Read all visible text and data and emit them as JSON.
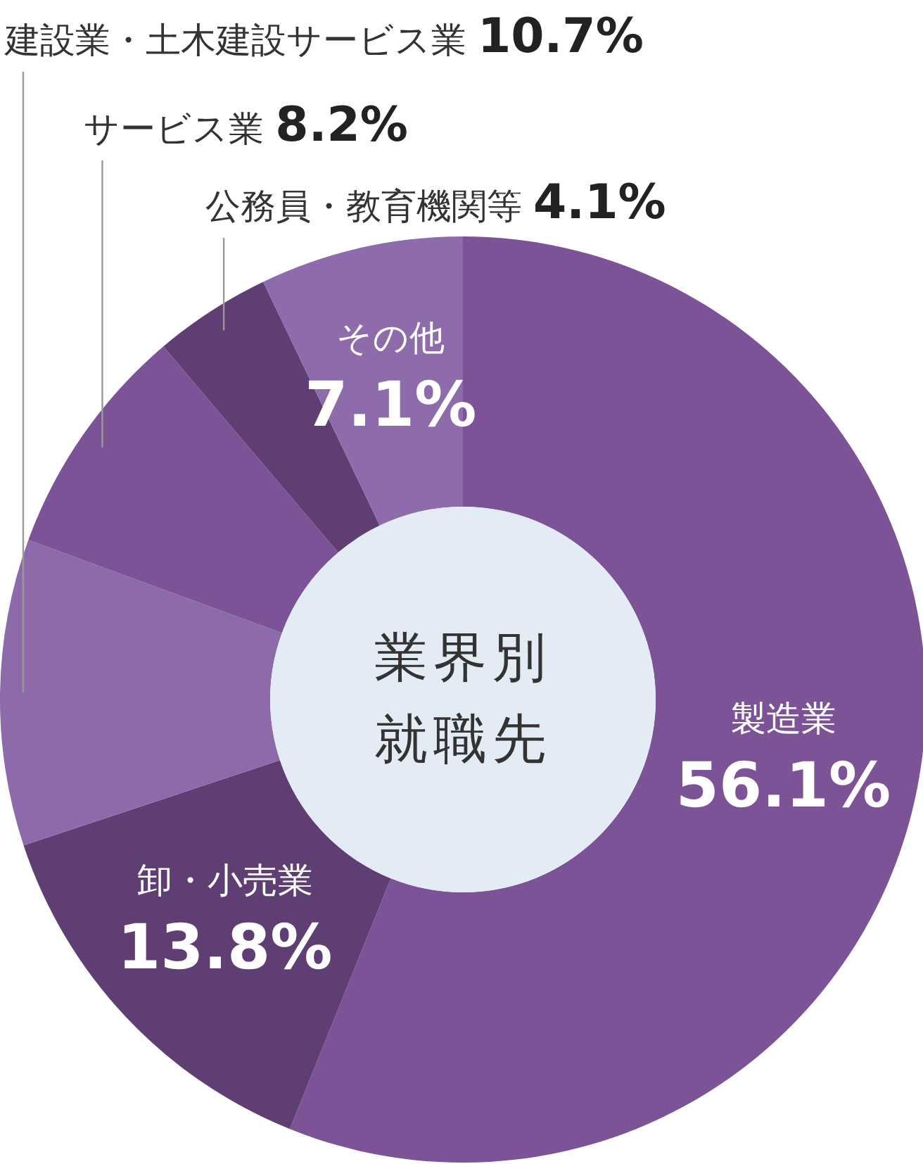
{
  "chart_data": {
    "type": "donut",
    "title": "業界別就職先",
    "categories": [
      "製造業",
      "卸・小売業",
      "建設業・土木建設サービス業",
      "サービス業",
      "公務員・教育機関等",
      "その他"
    ],
    "values": [
      56.1,
      13.8,
      10.7,
      8.2,
      4.1,
      7.1
    ],
    "colors": [
      "#7b5396",
      "#5f3f73",
      "#8d6aaa",
      "#7b5396",
      "#5f3f73",
      "#8e6cab"
    ],
    "value_labels": [
      "56.1%",
      "13.8%",
      "10.7%",
      "8.2%",
      "4.1%",
      "7.1%"
    ]
  }
}
